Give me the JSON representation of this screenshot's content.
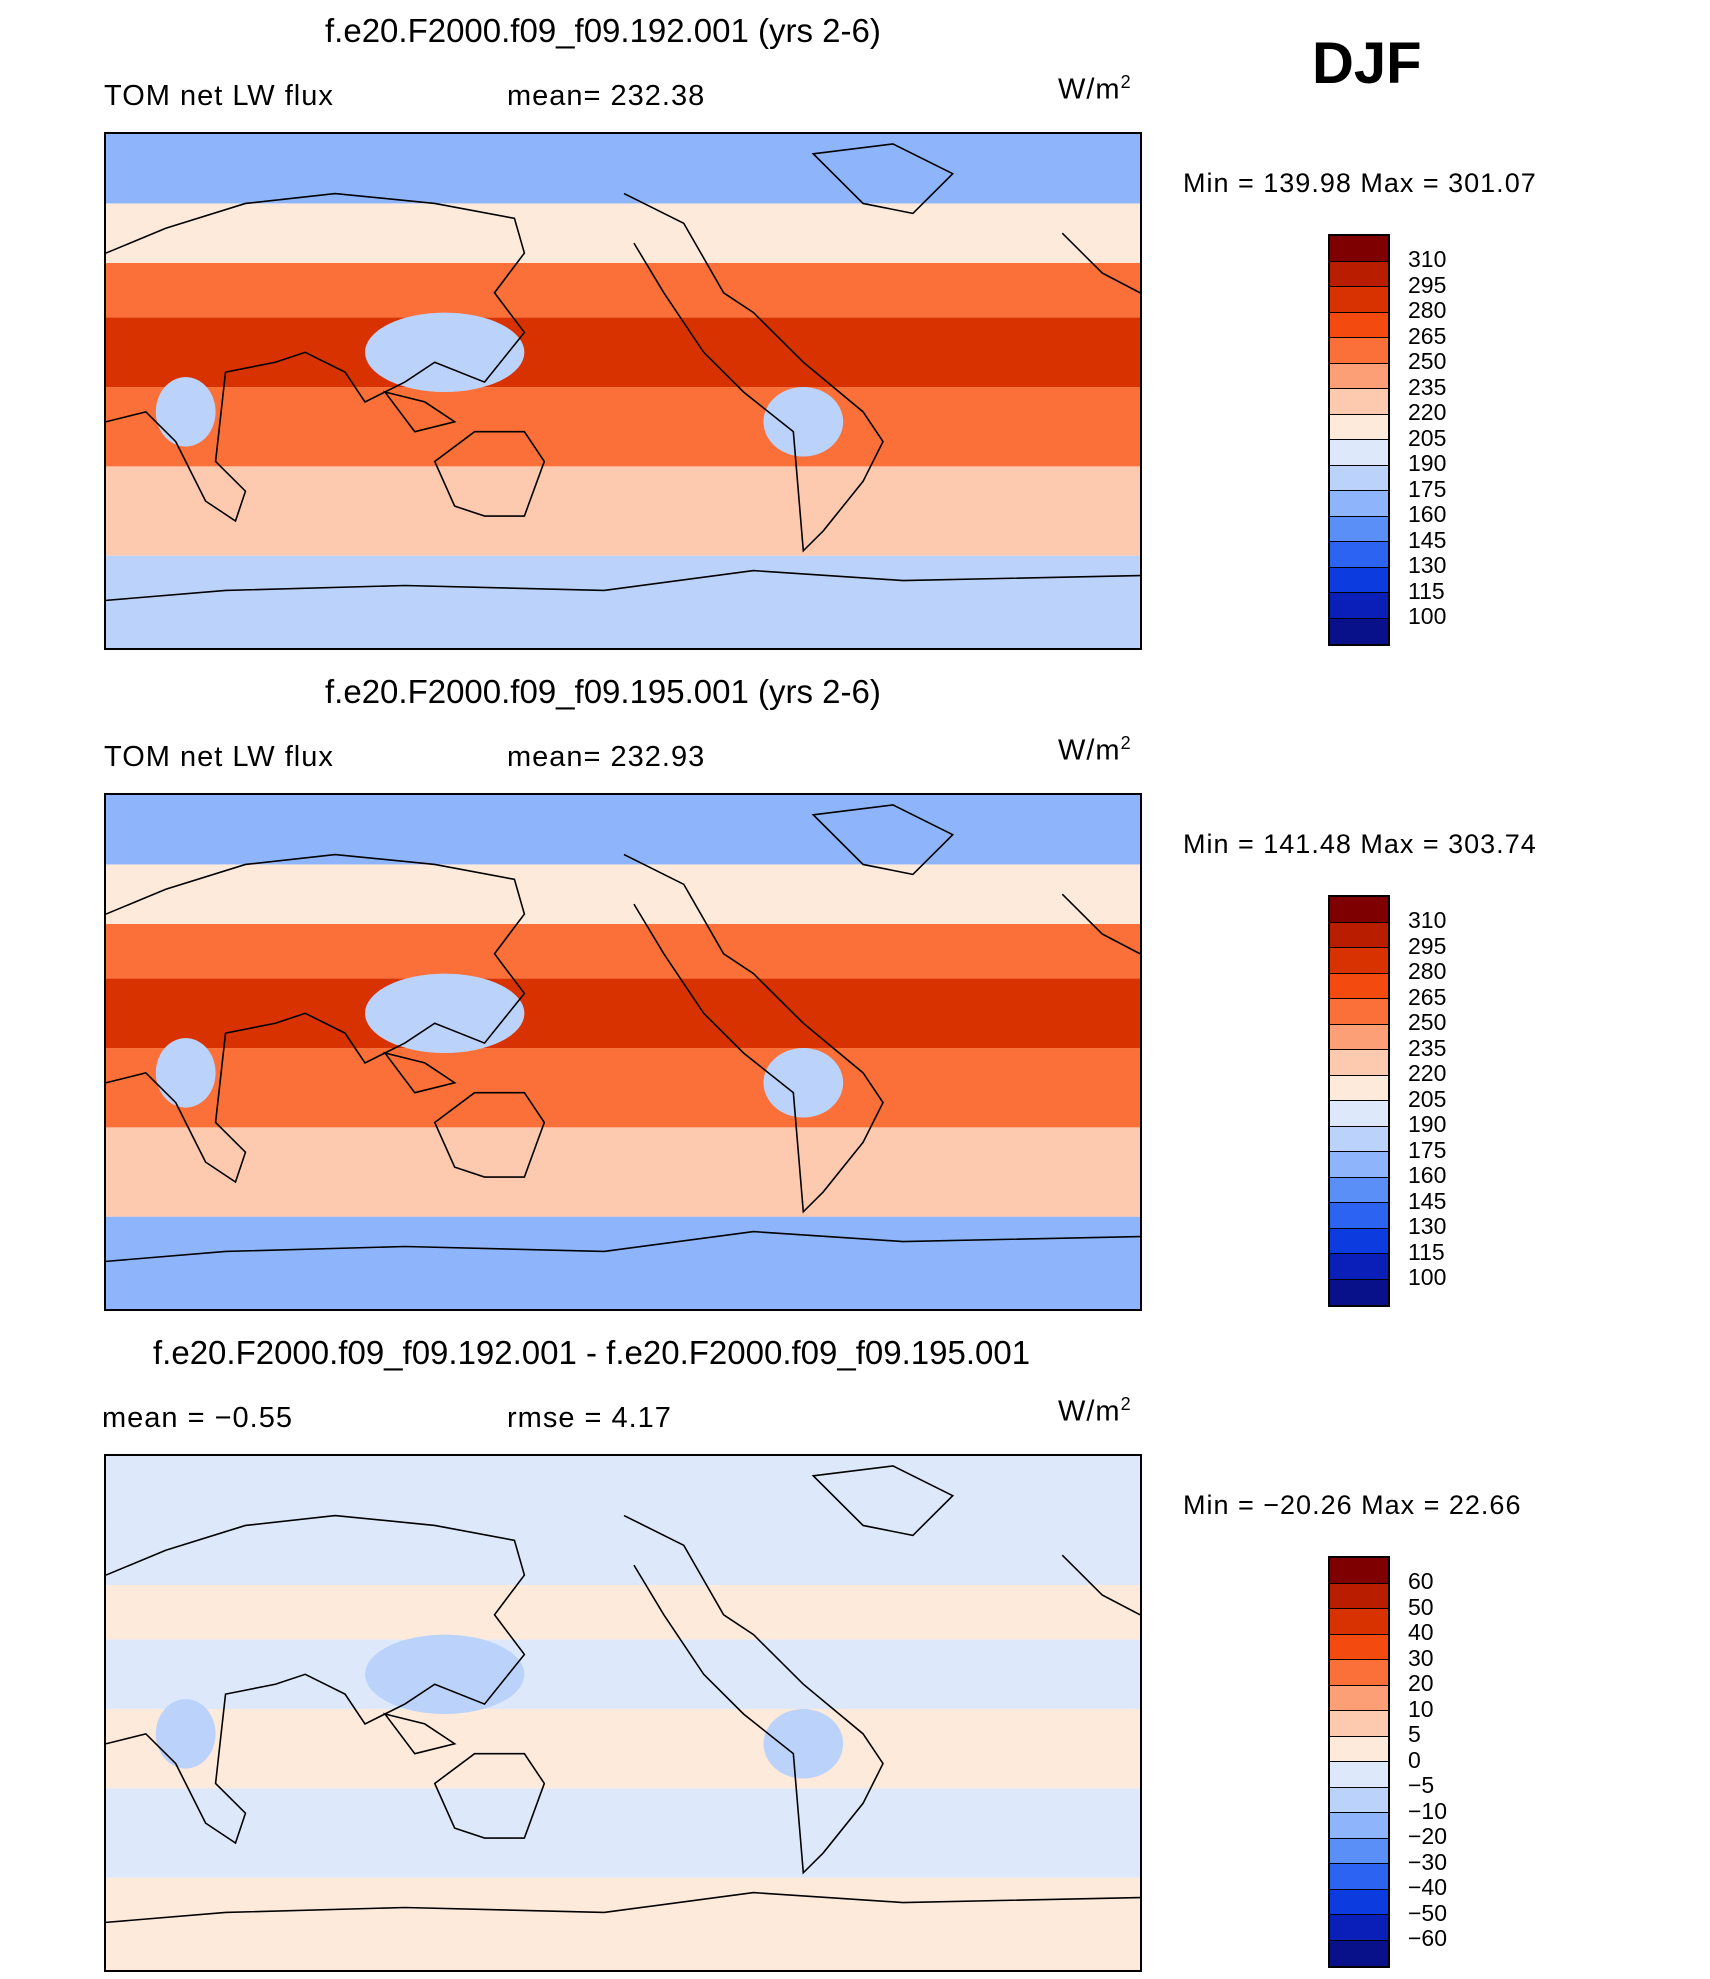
{
  "season": "DJF",
  "panels": [
    {
      "title": "f.e20.F2000.f09_f09.192.001 (yrs 2-6)",
      "left_label": "TOM net LW flux",
      "mid_label": "mean= 232.38",
      "units": "W/m",
      "units_sup": "2",
      "minmax": "Min = 139.98 Max = 301.07",
      "colorbar_labels": [
        "310",
        "295",
        "280",
        "265",
        "250",
        "235",
        "220",
        "205",
        "190",
        "175",
        "160",
        "145",
        "130",
        "115",
        "100"
      ],
      "colorbar_colors": [
        "#7f0000",
        "#b81d00",
        "#d83200",
        "#f34a0f",
        "#fa7038",
        "#fc9f76",
        "#fdcab0",
        "#fdeadb",
        "#dde9fb",
        "#bbd3fb",
        "#8eb5fb",
        "#5b8ff8",
        "#2d63f1",
        "#0c3be0",
        "#0a1fb8",
        "#08108a"
      ],
      "map_values": {
        "polar_n": 165,
        "mid_n": 205,
        "subtrop_n": 255,
        "tropics": 280,
        "warm_pool": 180,
        "subtrop_s": 260,
        "mid_s": 225,
        "polar_s": 185
      }
    },
    {
      "title": "f.e20.F2000.f09_f09.195.001 (yrs 2-6)",
      "left_label": "TOM net LW flux",
      "mid_label": "mean= 232.93",
      "units": "W/m",
      "units_sup": "2",
      "minmax": "Min = 141.48 Max = 303.74",
      "colorbar_labels": [
        "310",
        "295",
        "280",
        "265",
        "250",
        "235",
        "220",
        "205",
        "190",
        "175",
        "160",
        "145",
        "130",
        "115",
        "100"
      ],
      "colorbar_colors": [
        "#7f0000",
        "#b81d00",
        "#d83200",
        "#f34a0f",
        "#fa7038",
        "#fc9f76",
        "#fdcab0",
        "#fdeadb",
        "#dde9fb",
        "#bbd3fb",
        "#8eb5fb",
        "#5b8ff8",
        "#2d63f1",
        "#0c3be0",
        "#0a1fb8",
        "#08108a"
      ],
      "map_values": {
        "polar_n": 165,
        "mid_n": 205,
        "subtrop_n": 260,
        "tropics": 282,
        "warm_pool": 182,
        "subtrop_s": 262,
        "mid_s": 222,
        "polar_s": 170
      }
    },
    {
      "title": "f.e20.F2000.f09_f09.192.001 - f.e20.F2000.f09_f09.195.001",
      "left_label": "mean = −0.55",
      "mid_label": "rmse = 4.17",
      "units": "W/m",
      "units_sup": "2",
      "minmax": "Min = −20.26 Max = 22.66",
      "colorbar_labels": [
        "60",
        "50",
        "40",
        "30",
        "20",
        "10",
        "5",
        "0",
        "−5",
        "−10",
        "−20",
        "−30",
        "−40",
        "−50",
        "−60"
      ],
      "colorbar_colors": [
        "#7f0000",
        "#b81d00",
        "#d83200",
        "#f34a0f",
        "#fa7038",
        "#fc9f76",
        "#fdcab0",
        "#fdeadb",
        "#dde9fb",
        "#bbd3fb",
        "#8eb5fb",
        "#5b8ff8",
        "#2d63f1",
        "#0c3be0",
        "#0a1fb8",
        "#08108a"
      ],
      "map_values": {
        "polar_n": -2,
        "mid_n": -2,
        "subtrop_n": 2,
        "tropics": -3,
        "warm_pool": -8,
        "subtrop_s": 3,
        "mid_s": -2,
        "polar_s": 2
      }
    }
  ]
}
